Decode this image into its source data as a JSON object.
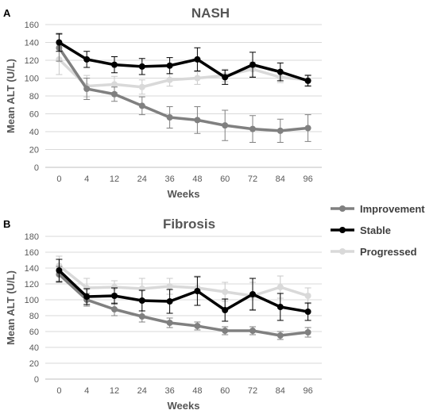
{
  "colors": {
    "Improvement": "#808080",
    "Stable": "#000000",
    "Progressed": "#d9d9d9"
  },
  "legend": {
    "placement": "right",
    "entries": [
      "Improvement",
      "Stable",
      "Progressed"
    ]
  },
  "chart_data": [
    {
      "type": "line",
      "panel": "A",
      "title": "NASH",
      "xlabel": "Weeks",
      "ylabel": "Mean ALT (U/L)",
      "ylim": [
        0,
        160
      ],
      "yticks": [
        0,
        20,
        40,
        60,
        80,
        100,
        120,
        140,
        160
      ],
      "grid": true,
      "categories": [
        "0",
        "4",
        "12",
        "24",
        "36",
        "48",
        "60",
        "72",
        "84",
        "96"
      ],
      "series": [
        {
          "name": "Improvement",
          "values": [
            134,
            88,
            82,
            69,
            56,
            53,
            47,
            43,
            41,
            44
          ],
          "errors": [
            15,
            12,
            8,
            10,
            12,
            15,
            17,
            15,
            13,
            15
          ]
        },
        {
          "name": "Stable",
          "values": [
            140,
            121,
            115,
            113,
            114,
            121,
            101,
            115,
            107,
            97
          ],
          "errors": [
            10,
            9,
            9,
            9,
            9,
            13,
            8,
            14,
            10,
            6
          ]
        },
        {
          "name": "Progressed",
          "values": [
            121,
            91,
            93,
            90,
            98,
            100,
            103,
            110,
            101,
            98
          ],
          "errors": [
            17,
            12,
            9,
            8,
            7,
            7,
            7,
            8,
            6,
            6
          ]
        }
      ]
    },
    {
      "type": "line",
      "panel": "B",
      "title": "Fibrosis",
      "xlabel": "Weeks",
      "ylabel": "Mean ALT (U/L)",
      "ylim": [
        0,
        180
      ],
      "yticks": [
        0,
        20,
        40,
        60,
        80,
        100,
        120,
        140,
        160,
        180
      ],
      "grid": true,
      "categories": [
        "0",
        "4",
        "12",
        "24",
        "36",
        "48",
        "60",
        "72",
        "84",
        "96"
      ],
      "series": [
        {
          "name": "Improvement",
          "values": [
            132,
            100,
            88,
            79,
            71,
            67,
            61,
            61,
            55,
            59
          ],
          "errors": [
            10,
            8,
            8,
            7,
            6,
            5,
            5,
            5,
            5,
            6
          ]
        },
        {
          "name": "Stable",
          "values": [
            137,
            104,
            105,
            99,
            98,
            111,
            87,
            107,
            91,
            85
          ],
          "errors": [
            14,
            10,
            10,
            13,
            15,
            18,
            14,
            20,
            17,
            11
          ]
        },
        {
          "name": "Progressed",
          "values": [
            143,
            115,
            116,
            114,
            117,
            115,
            110,
            105,
            116,
            105
          ],
          "errors": [
            12,
            12,
            8,
            13,
            10,
            15,
            12,
            17,
            14,
            10
          ]
        }
      ]
    }
  ]
}
